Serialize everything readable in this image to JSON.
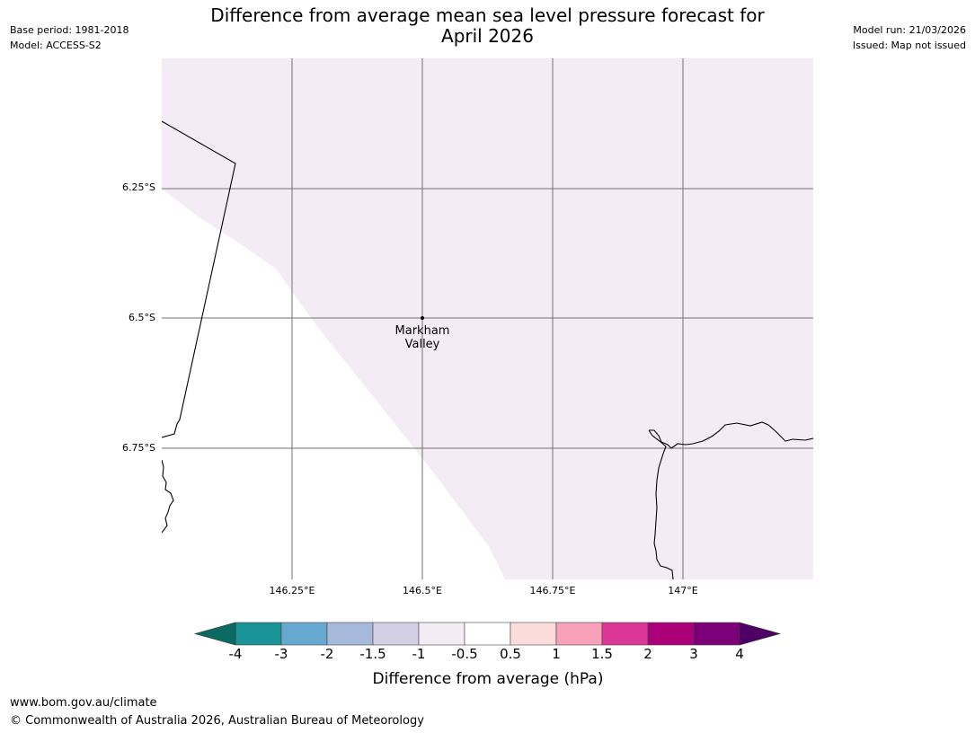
{
  "header": {
    "title_line1": "Difference from average mean sea level pressure forecast for",
    "title_line2": "April 2026",
    "base_period": "Base period: 1981-2018",
    "model": "Model: ACCESS-S2",
    "model_run": "Model run: 21/03/2026",
    "issued": "Issued: Map not issued"
  },
  "map": {
    "lat_labels": [
      "6.25°S",
      "6.5°S",
      "6.75°S"
    ],
    "lon_labels": [
      "146.25°E",
      "146.5°E",
      "146.75°E",
      "147°E"
    ],
    "place": {
      "line1": "Markham",
      "line2": "Valley"
    },
    "shading_color": "#f4ecf5"
  },
  "colorbar": {
    "ticks": [
      "-4",
      "-3",
      "-2",
      "-1.5",
      "-1",
      "-0.5",
      "0.5",
      "1",
      "1.5",
      "2",
      "3",
      "4"
    ],
    "colors": [
      "#1a9396",
      "#66a8cf",
      "#a6b9da",
      "#d3cfe4",
      "#f4ecf5",
      "#ffffff",
      "#fcdbdb",
      "#f8a1b8",
      "#dc3697",
      "#ab0079",
      "#7b0077"
    ],
    "under_color": "#0a6b63",
    "over_color": "#4e0066",
    "label": "Difference from average (hPa)"
  },
  "footer": {
    "url": "www.bom.gov.au/climate",
    "copyright": "© Commonwealth of Australia 2026, Australian Bureau of Meteorology"
  }
}
